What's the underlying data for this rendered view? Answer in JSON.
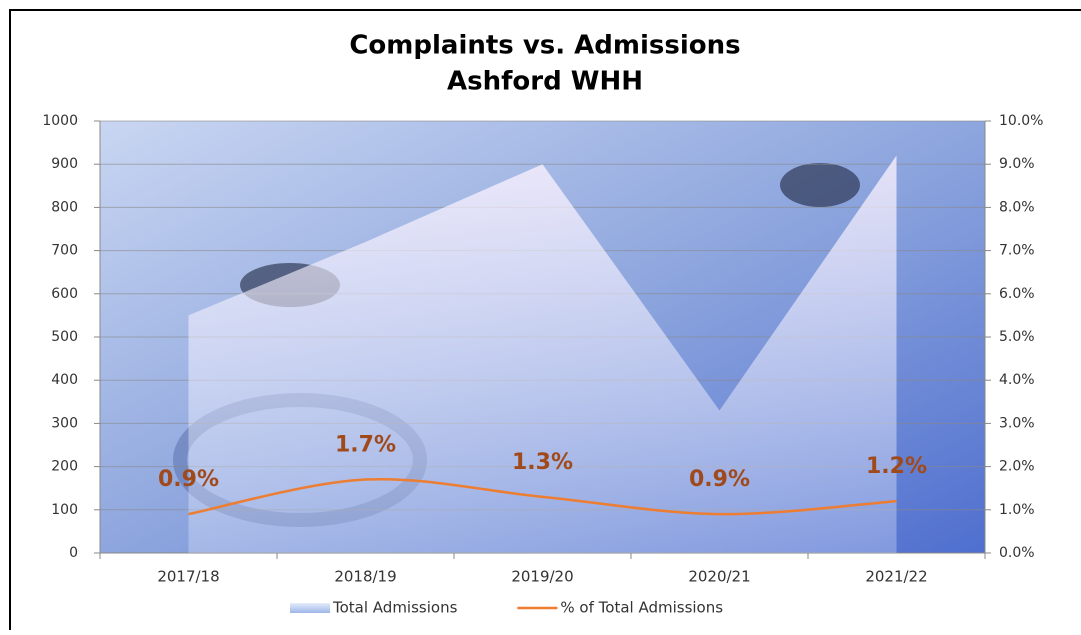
{
  "chart_data": {
    "type": "area-line",
    "title": "Complaints vs. Admissions",
    "subtitle": "Ashford WHH",
    "categories": [
      "2017/18",
      "2018/19",
      "2019/20",
      "2020/21",
      "2021/22"
    ],
    "series": [
      {
        "name": "Total Admissions",
        "type": "area",
        "color": "#ffffff",
        "values": [
          550,
          720,
          900,
          330,
          920
        ]
      },
      {
        "name": "% of Total Admissions",
        "type": "line",
        "axis": "y2",
        "color": "#ed7d31",
        "values": [
          0.9,
          1.7,
          1.3,
          0.9,
          1.2
        ],
        "value_labels": [
          "0.9%",
          "1.7%",
          "1.3%",
          "0.9%",
          "1.2%"
        ]
      }
    ],
    "ylim": [
      0,
      1000
    ],
    "yticks": [
      0,
      100,
      200,
      300,
      400,
      500,
      600,
      700,
      800,
      900,
      1000
    ],
    "y2lim": [
      0,
      10
    ],
    "y2ticks": [
      {
        "value": 0,
        "label": "0.0%"
      },
      {
        "value": 1,
        "label": "1.0%"
      },
      {
        "value": 2,
        "label": "2.0%"
      },
      {
        "value": 3,
        "label": "3.0%"
      },
      {
        "value": 4,
        "label": "4.0%"
      },
      {
        "value": 5,
        "label": "5.0%"
      },
      {
        "value": 6,
        "label": "6.0%"
      },
      {
        "value": 7,
        "label": "7.0%"
      },
      {
        "value": 8,
        "label": "8.0%"
      },
      {
        "value": 9,
        "label": "9.0%"
      },
      {
        "value": 10,
        "label": "10.0%"
      }
    ],
    "grid": true,
    "legend": "bottom"
  }
}
